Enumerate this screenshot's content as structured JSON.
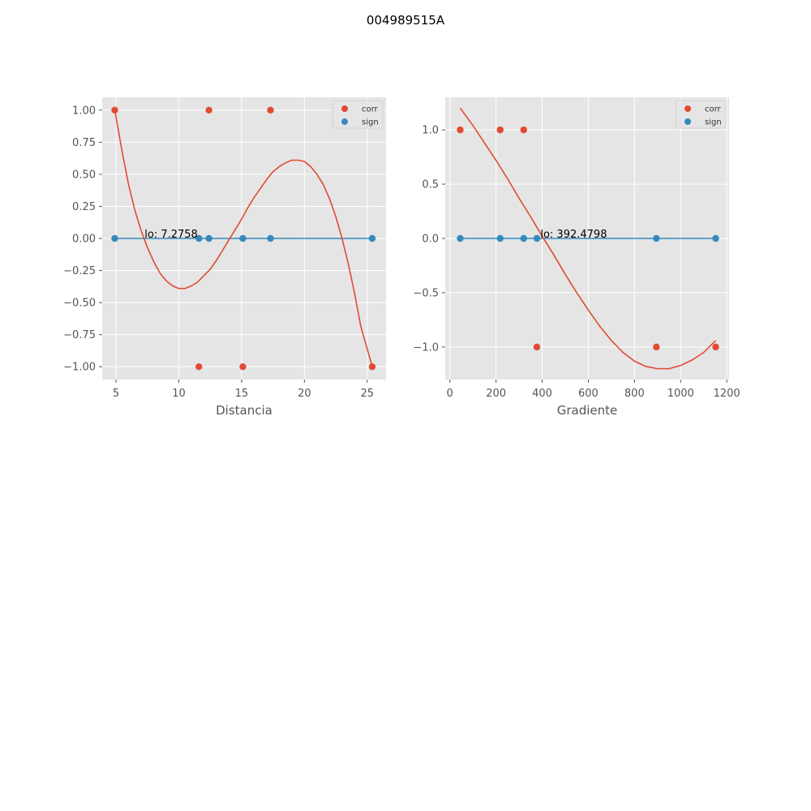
{
  "figure": {
    "title": "004989515A"
  },
  "colors": {
    "corr": "#E24A33",
    "sign": "#348ABD",
    "panel_bg": "#E5E5E5",
    "grid": "#FFFFFF"
  },
  "chart_data": [
    {
      "type": "scatter",
      "xlabel": "Distancia",
      "ylabel": "",
      "xlim": [
        3.9,
        26.5
      ],
      "ylim": [
        -1.1,
        1.1
      ],
      "xticks": [
        5,
        10,
        15,
        20,
        25
      ],
      "yticks": [
        1.0,
        0.75,
        0.5,
        0.25,
        0.0,
        -0.25,
        -0.5,
        -0.75,
        -1.0
      ],
      "ytick_labels": [
        "1.00",
        "0.75",
        "0.50",
        "0.25",
        "0.00",
        "−0.25",
        "−0.50",
        "−0.75",
        "−1.00"
      ],
      "grid": true,
      "legend": "top-right",
      "series": [
        {
          "name": "corr",
          "kind": "scatter",
          "x": [
            4.9,
            11.6,
            12.4,
            15.1,
            17.3,
            25.4
          ],
          "y": [
            1,
            -1,
            1,
            -1,
            1,
            -1
          ]
        },
        {
          "name": "sign",
          "kind": "scatter",
          "x": [
            4.9,
            11.6,
            12.4,
            15.1,
            17.3,
            25.4
          ],
          "y": [
            0,
            0,
            0,
            0,
            0,
            0
          ]
        },
        {
          "name": "",
          "kind": "line",
          "color_key": "sign",
          "x": [
            4.9,
            25.4
          ],
          "y": [
            0,
            0
          ]
        },
        {
          "name": "",
          "kind": "line",
          "color_key": "corr",
          "x": [
            4.9,
            5.5,
            6.0,
            6.5,
            7.0,
            7.5,
            8.0,
            8.5,
            9.0,
            9.5,
            10.0,
            10.5,
            11.0,
            11.5,
            12.0,
            12.5,
            13.0,
            13.5,
            14.0,
            14.5,
            15.0,
            15.5,
            16.0,
            16.5,
            17.0,
            17.5,
            18.0,
            18.5,
            19.0,
            19.5,
            20.0,
            20.5,
            21.0,
            21.5,
            22.0,
            22.5,
            23.0,
            23.5,
            24.0,
            24.5,
            25.0,
            25.4
          ],
          "y": [
            1.0,
            0.67,
            0.42,
            0.22,
            0.06,
            -0.07,
            -0.18,
            -0.27,
            -0.33,
            -0.37,
            -0.39,
            -0.39,
            -0.37,
            -0.34,
            -0.29,
            -0.24,
            -0.17,
            -0.09,
            -0.01,
            0.07,
            0.15,
            0.24,
            0.32,
            0.39,
            0.46,
            0.52,
            0.56,
            0.59,
            0.61,
            0.61,
            0.6,
            0.56,
            0.5,
            0.42,
            0.31,
            0.17,
            0.0,
            -0.2,
            -0.43,
            -0.69,
            -0.86,
            -1.0
          ]
        }
      ],
      "annotations": [
        {
          "text": "lo: 7.2758",
          "x": 7.2758,
          "y": 0.0
        }
      ]
    },
    {
      "type": "scatter",
      "xlabel": "Gradiente",
      "ylabel": "",
      "xlim": [
        -20,
        1210
      ],
      "ylim": [
        -1.3,
        1.3
      ],
      "xticks": [
        0,
        200,
        400,
        600,
        800,
        1000,
        1200
      ],
      "yticks": [
        1.0,
        0.5,
        0.0,
        -0.5,
        -1.0
      ],
      "ytick_labels": [
        "1.0",
        "0.5",
        "0.0",
        "−0.5",
        "−1.0"
      ],
      "grid": true,
      "legend": "top-right",
      "series": [
        {
          "name": "corr",
          "kind": "scatter",
          "x": [
            45,
            218,
            320,
            377,
            895,
            1152
          ],
          "y": [
            1,
            1,
            1,
            -1,
            -1,
            -1
          ]
        },
        {
          "name": "sign",
          "kind": "scatter",
          "x": [
            45,
            218,
            320,
            377,
            895,
            1152
          ],
          "y": [
            0,
            0,
            0,
            0,
            0,
            0
          ]
        },
        {
          "name": "",
          "kind": "line",
          "color_key": "sign",
          "x": [
            45,
            1152
          ],
          "y": [
            0,
            0
          ]
        },
        {
          "name": "",
          "kind": "line",
          "color_key": "corr",
          "x": [
            45,
            100,
            150,
            200,
            250,
            300,
            350,
            400,
            450,
            500,
            550,
            600,
            650,
            700,
            750,
            800,
            850,
            900,
            950,
            1000,
            1050,
            1100,
            1152
          ],
          "y": [
            1.2,
            1.04,
            0.88,
            0.72,
            0.55,
            0.37,
            0.2,
            0.02,
            -0.15,
            -0.33,
            -0.5,
            -0.66,
            -0.81,
            -0.94,
            -1.05,
            -1.13,
            -1.18,
            -1.2,
            -1.2,
            -1.17,
            -1.12,
            -1.05,
            -0.94
          ]
        }
      ],
      "annotations": [
        {
          "text": "lo: 392.4798",
          "x": 392.4798,
          "y": 0.0
        }
      ]
    }
  ]
}
